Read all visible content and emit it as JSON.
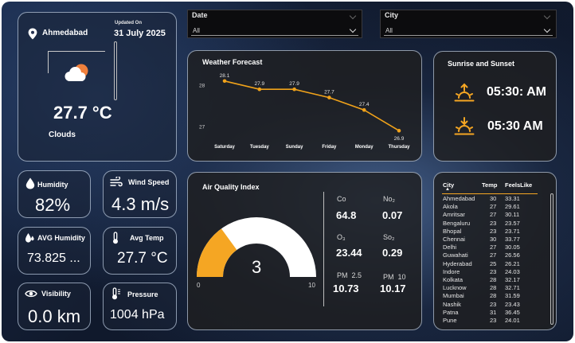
{
  "slicers": {
    "date": {
      "label": "Date",
      "value": "All"
    },
    "city": {
      "label": "City",
      "value": "All"
    }
  },
  "weather": {
    "city": "Ahmedabad",
    "updated_label": "Updated On",
    "updated_date": "31 July 2025",
    "temperature": "27.7 °C",
    "condition": "Clouds"
  },
  "forecast": {
    "title": "Weather Forecast",
    "chart_data": {
      "type": "line",
      "categories": [
        "Saturday",
        "Tuesday",
        "Sunday",
        "Friday",
        "Monday",
        "Thursday"
      ],
      "values": [
        28.1,
        27.9,
        27.9,
        27.7,
        27.4,
        26.9
      ],
      "value_labels": [
        "28.1",
        "27.9",
        "27.9",
        "27.7",
        "27.4",
        "26.9"
      ],
      "y_ticks": [
        "28",
        "27"
      ],
      "ylim": [
        26.75,
        28.25
      ],
      "color": "#f0a21a"
    }
  },
  "sun": {
    "title": "Sunrise and Sunset",
    "sunrise": "05:30: AM",
    "sunset": "05:30 AM",
    "icon_color": "#f5a623"
  },
  "metrics": {
    "humidity": {
      "label": "Humidity",
      "value": "82%"
    },
    "wind_speed": {
      "label": "Wind Speed",
      "value": "4.3 m/s"
    },
    "avg_humidity": {
      "label": "AVG Humidity",
      "value": "73.825 ..."
    },
    "avg_temp": {
      "label": "Avg Temp",
      "value": "27.7 °C"
    },
    "visibility": {
      "label": "Visibility",
      "value": "0.0 km"
    },
    "pressure": {
      "label": "Pressure",
      "value": "1004 hPa"
    }
  },
  "aqi": {
    "title": "Air Quality Index",
    "value": "3",
    "gauge_min": "0",
    "gauge_max": "10",
    "gauge_fraction": 0.3,
    "fill_color": "#f5a623",
    "pollutants": {
      "co": {
        "label": "Co",
        "value": "64.8"
      },
      "no2": {
        "label": "No₂",
        "value": "0.07"
      },
      "o3": {
        "label": "O₃",
        "value": "23.44"
      },
      "so2": {
        "label": "So₂",
        "value": "0.29"
      },
      "pm25": {
        "label": "PM  2.5",
        "value": "10.73"
      },
      "pm10": {
        "label": "PM  10",
        "value": "10.17"
      }
    }
  },
  "table": {
    "headers": [
      "City",
      "Temp",
      "FeelsLike"
    ],
    "rows": [
      [
        "Ahmedabad",
        "30",
        "33.31"
      ],
      [
        "Akola",
        "27",
        "29.61"
      ],
      [
        "Amritsar",
        "27",
        "30.11"
      ],
      [
        "Bengaluru",
        "23",
        "23.57"
      ],
      [
        "Bhopal",
        "23",
        "23.71"
      ],
      [
        "Chennai",
        "30",
        "33.77"
      ],
      [
        "Delhi",
        "27",
        "30.05"
      ],
      [
        "Guwahati",
        "27",
        "26.56"
      ],
      [
        "Hyderabad",
        "25",
        "26.21"
      ],
      [
        "Indore",
        "23",
        "24.03"
      ],
      [
        "Kolkata",
        "28",
        "32.17"
      ],
      [
        "Lucknow",
        "28",
        "32.71"
      ],
      [
        "Mumbai",
        "28",
        "31.59"
      ],
      [
        "Nashik",
        "23",
        "23.43"
      ],
      [
        "Patna",
        "31",
        "36.45"
      ],
      [
        "Pune",
        "23",
        "24.01"
      ]
    ]
  }
}
